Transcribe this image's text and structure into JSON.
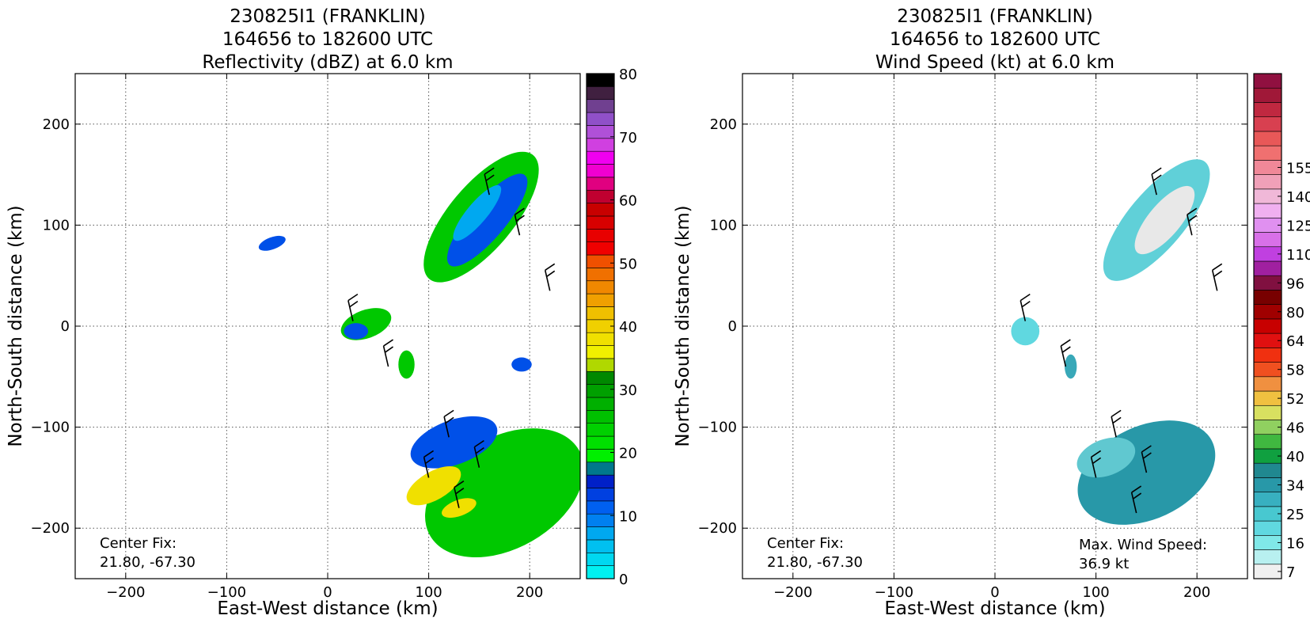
{
  "chart_data": [
    {
      "type": "heatmap",
      "title_lines": [
        "230825I1 (FRANKLIN)",
        "164656 to 182600 UTC",
        "Reflectivity (dBZ) at 6.0 km"
      ],
      "xlabel": "East-West distance (km)",
      "ylabel": "North-South distance (km)",
      "xlim": [
        -250,
        250
      ],
      "ylim": [
        -250,
        250
      ],
      "xticks": [
        -200,
        -100,
        0,
        100,
        200
      ],
      "yticks": [
        -200,
        -100,
        0,
        100,
        200
      ],
      "xtick_labels": [
        "−200",
        "−100",
        "0",
        "100",
        "200"
      ],
      "ytick_labels": [
        "−200",
        "−100",
        "0",
        "100",
        "200"
      ],
      "grid": true,
      "annotation": {
        "label": "Center Fix:",
        "value": "21.80, -67.30"
      },
      "colorbar": {
        "min": 0,
        "max": 80,
        "tick_values": [
          0,
          10,
          20,
          30,
          40,
          50,
          60,
          70,
          80
        ],
        "tick_labels": [
          "0",
          "10",
          "20",
          "30",
          "40",
          "50",
          "60",
          "70",
          "80"
        ],
        "colors": [
          "#00f0f0",
          "#00d8f0",
          "#00c0f0",
          "#00a8f0",
          "#0080f0",
          "#0060f0",
          "#0040e0",
          "#0020c8",
          "#00788c",
          "#00f000",
          "#00e000",
          "#00d000",
          "#00c000",
          "#00b000",
          "#00a000",
          "#008800",
          "#b0d800",
          "#f0f000",
          "#f0e000",
          "#f0d000",
          "#f0c000",
          "#f0a000",
          "#f08800",
          "#f07000",
          "#f05000",
          "#f00000",
          "#e80000",
          "#d80000",
          "#c80000",
          "#c00030",
          "#e00080",
          "#f000d0",
          "#f000f0",
          "#d040e0",
          "#b050d8",
          "#9050c8",
          "#704090",
          "#402040",
          "#000000"
        ]
      },
      "echoes": [
        {
          "cx": 152,
          "cy": 108,
          "rx": 80,
          "ry": 32,
          "rot": -50,
          "color": "#00c800"
        },
        {
          "cx": 158,
          "cy": 105,
          "rx": 58,
          "ry": 18,
          "rot": -50,
          "color": "#0050e8"
        },
        {
          "cx": 148,
          "cy": 112,
          "rx": 35,
          "ry": 10,
          "rot": -50,
          "color": "#00a8f0"
        },
        {
          "cx": 38,
          "cy": 2,
          "rx": 26,
          "ry": 14,
          "rot": -20,
          "color": "#00c800"
        },
        {
          "cx": 28,
          "cy": -5,
          "rx": 12,
          "ry": 8,
          "rot": 0,
          "color": "#0050e8"
        },
        {
          "cx": -55,
          "cy": 82,
          "rx": 14,
          "ry": 6,
          "rot": -20,
          "color": "#0050e8"
        },
        {
          "cx": 78,
          "cy": -38,
          "rx": 8,
          "ry": 14,
          "rot": 0,
          "color": "#00c800"
        },
        {
          "cx": 192,
          "cy": -38,
          "rx": 10,
          "ry": 7,
          "rot": 0,
          "color": "#0050e8"
        },
        {
          "cx": 175,
          "cy": -165,
          "rx": 85,
          "ry": 55,
          "rot": -30,
          "color": "#00c800"
        },
        {
          "cx": 125,
          "cy": -115,
          "rx": 45,
          "ry": 22,
          "rot": -20,
          "color": "#0050e8"
        },
        {
          "cx": 105,
          "cy": -158,
          "rx": 30,
          "ry": 14,
          "rot": -30,
          "color": "#f0e000"
        },
        {
          "cx": 130,
          "cy": -180,
          "rx": 18,
          "ry": 8,
          "rot": -20,
          "color": "#f0e000"
        }
      ],
      "barbs": [
        {
          "x": 25,
          "y": 5
        },
        {
          "x": 60,
          "y": -40
        },
        {
          "x": 120,
          "y": -110
        },
        {
          "x": 150,
          "y": -140
        },
        {
          "x": 100,
          "y": -150
        },
        {
          "x": 160,
          "y": 130
        },
        {
          "x": 190,
          "y": 90
        },
        {
          "x": 220,
          "y": 35
        },
        {
          "x": 130,
          "y": -180
        }
      ]
    },
    {
      "type": "heatmap",
      "title_lines": [
        "230825I1 (FRANKLIN)",
        "164656 to 182600 UTC",
        "Wind Speed (kt) at 6.0 km"
      ],
      "xlabel": "East-West distance (km)",
      "ylabel": "North-South distance (km)",
      "xlim": [
        -250,
        250
      ],
      "ylim": [
        -250,
        250
      ],
      "xticks": [
        -200,
        -100,
        0,
        100,
        200
      ],
      "yticks": [
        -200,
        -100,
        0,
        100,
        200
      ],
      "xtick_labels": [
        "−200",
        "−100",
        "0",
        "100",
        "200"
      ],
      "ytick_labels": [
        "−200",
        "−100",
        "0",
        "100",
        "200"
      ],
      "grid": true,
      "annotation": {
        "label": "Center Fix:",
        "value": "21.80, -67.30"
      },
      "max_wind": {
        "label": "Max. Wind Speed:",
        "value": "36.9 kt"
      },
      "colorbar": {
        "tick_labels": [
          "7",
          "16",
          "25",
          "34",
          "40",
          "46",
          "52",
          "58",
          "64",
          "80",
          "96",
          "110",
          "125",
          "140",
          "155"
        ],
        "tick_bins": [
          0,
          2,
          4,
          6,
          8,
          10,
          12,
          14,
          16,
          18,
          20,
          22,
          24,
          26,
          28
        ],
        "colors": [
          "#f0f0f0",
          "#b8f0f0",
          "#80e8e8",
          "#60d8e0",
          "#48c8d0",
          "#38b0c0",
          "#2898a8",
          "#208890",
          "#10a040",
          "#40b840",
          "#90d060",
          "#d8e060",
          "#f0c040",
          "#f09040",
          "#f05020",
          "#f03010",
          "#e01010",
          "#c80000",
          "#a00000",
          "#780000",
          "#801040",
          "#a020a0",
          "#c040e0",
          "#d870e8",
          "#e090f0",
          "#f0b0f0",
          "#f0b8d8",
          "#f0a0b8",
          "#f08898",
          "#f07070",
          "#e85858",
          "#d84050",
          "#c02840",
          "#a01838",
          "#901040"
        ]
      },
      "echoes": [
        {
          "cx": 160,
          "cy": 105,
          "rx": 75,
          "ry": 28,
          "rot": -50,
          "color": "#60d0d8"
        },
        {
          "cx": 168,
          "cy": 105,
          "rx": 42,
          "ry": 16,
          "rot": -50,
          "color": "#e8e8e8"
        },
        {
          "cx": 30,
          "cy": -5,
          "rx": 14,
          "ry": 14,
          "rot": 0,
          "color": "#60d8e0"
        },
        {
          "cx": 75,
          "cy": -40,
          "rx": 6,
          "ry": 12,
          "rot": 0,
          "color": "#38a8b8"
        },
        {
          "cx": 150,
          "cy": -145,
          "rx": 72,
          "ry": 46,
          "rot": -25,
          "color": "#2898a8"
        },
        {
          "cx": 110,
          "cy": -130,
          "rx": 30,
          "ry": 18,
          "rot": -20,
          "color": "#60c8d0"
        }
      ],
      "barbs": [
        {
          "x": 30,
          "y": 5
        },
        {
          "x": 70,
          "y": -40
        },
        {
          "x": 120,
          "y": -110
        },
        {
          "x": 150,
          "y": -145
        },
        {
          "x": 100,
          "y": -150
        },
        {
          "x": 160,
          "y": 130
        },
        {
          "x": 195,
          "y": 90
        },
        {
          "x": 220,
          "y": 35
        },
        {
          "x": 140,
          "y": -185
        }
      ]
    }
  ]
}
